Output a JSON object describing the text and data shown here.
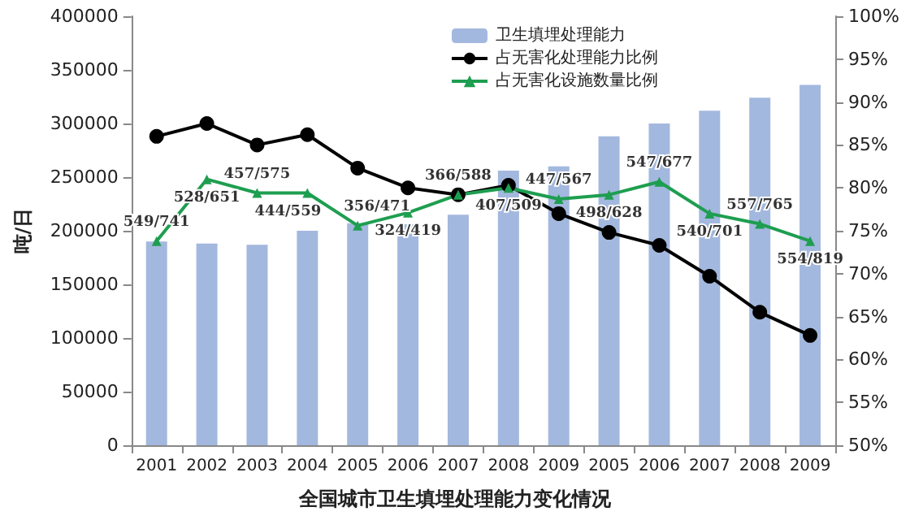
{
  "chart_data": {
    "type": "bar",
    "title": "全国城市卫生填埋处理能力变化情况",
    "ylabel": "吨/日",
    "categories": [
      "2001",
      "2002",
      "2003",
      "2004",
      "2005",
      "2006",
      "2007",
      "2008",
      "2009",
      "2005",
      "2006",
      "2007",
      "2008",
      "2009"
    ],
    "series": [
      {
        "name": "卫生填埋处理能力",
        "color": "#a3b8de",
        "values": [
          190000,
          188000,
          187000,
          200000,
          207000,
          206000,
          215000,
          256000,
          260000,
          288000,
          300000,
          312000,
          324000,
          336000
        ]
      },
      {
        "name": "占无害化处理能力比例",
        "type": "line",
        "axis": "y2",
        "color": "#000000",
        "marker": "circle",
        "values": [
          86,
          87.5,
          85,
          86.2,
          82.3,
          80,
          79.2,
          80.3,
          77,
          74.8,
          73.3,
          69.7,
          65.5,
          62.8
        ]
      },
      {
        "name": "占无害化设施数量比例",
        "type": "line",
        "axis": "y2",
        "color": "#1e9e50",
        "marker": "triangle",
        "values": [
          73.8,
          81,
          79.4,
          79.4,
          75.6,
          77.1,
          79.2,
          80,
          78.7,
          79.2,
          80.7,
          77,
          75.8,
          73.8
        ],
        "value_labels": [
          "549/741",
          "528/651",
          "457/575",
          "444/559",
          "356/471",
          "324/419",
          "366/588",
          "407/509",
          "447/567",
          "498/628",
          "547/677",
          "540/701",
          "557/765",
          "554/819"
        ]
      }
    ],
    "ylim": [
      0,
      400000
    ],
    "yticks": [
      0,
      50000,
      100000,
      150000,
      200000,
      250000,
      300000,
      350000,
      400000
    ],
    "y2lim": [
      50,
      100
    ],
    "y2ticks": [
      {
        "value": 50,
        "label": "50%"
      },
      {
        "value": 55,
        "label": "55%"
      },
      {
        "value": 60,
        "label": "60%"
      },
      {
        "value": 65,
        "label": "65%"
      },
      {
        "value": 70,
        "label": "70%"
      },
      {
        "value": 75,
        "label": "75%"
      },
      {
        "value": 80,
        "label": "80%"
      },
      {
        "value": 85,
        "label": "85%"
      },
      {
        "value": 90,
        "label": "90%"
      },
      {
        "value": 95,
        "label": "95%"
      },
      {
        "value": 100,
        "label": "100%"
      }
    ],
    "grid": false,
    "legend": "top right"
  }
}
